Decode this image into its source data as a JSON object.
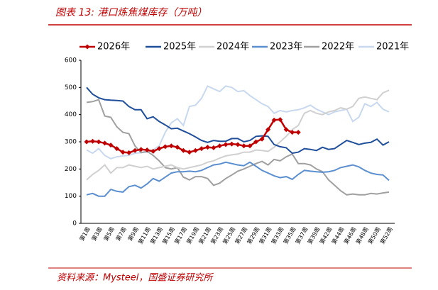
{
  "chart_data": {
    "type": "line",
    "title": "图表 13:  港口炼焦煤库存（万吨）",
    "source": "资料来源：Mysteel，国盛证券研究所",
    "categories": [
      "第1周",
      null,
      "第3周",
      null,
      "第5周",
      null,
      "第7周",
      null,
      "第9周",
      null,
      "第11周",
      null,
      "第13周",
      null,
      "第15周",
      null,
      "第17周",
      null,
      "第19周",
      null,
      "第21周",
      null,
      "第23周",
      null,
      "第25周",
      null,
      "第27周",
      null,
      "第29周",
      null,
      "第31周",
      null,
      "第33周",
      null,
      "第35周",
      null,
      "第37周",
      null,
      "第39周",
      null,
      "第42周",
      null,
      "第44周",
      null,
      "第46周",
      null,
      "第48周",
      null,
      "第50周",
      null,
      "第52周"
    ],
    "ylim": [
      0,
      600
    ],
    "yticks": [
      0,
      100,
      200,
      300,
      400,
      500,
      600
    ],
    "series": [
      {
        "name": "2026年",
        "color": "#c00000",
        "marker": "diamond",
        "values": [
          300,
          302,
          300,
          295,
          288,
          275,
          262,
          260,
          268,
          272,
          270,
          265,
          275,
          282,
          285,
          280,
          268,
          262,
          268,
          275,
          280,
          278,
          285,
          290,
          292,
          290,
          285,
          285,
          300,
          310,
          345,
          380,
          382,
          345,
          335,
          335,
          null,
          null,
          null,
          null,
          null,
          null,
          null,
          null,
          null,
          null,
          null,
          null,
          null,
          null,
          null
        ]
      },
      {
        "name": "2025年",
        "color": "#1f4e9a",
        "values": [
          500,
          475,
          462,
          455,
          453,
          452,
          450,
          430,
          418,
          418,
          385,
          392,
          375,
          362,
          348,
          350,
          340,
          330,
          318,
          305,
          298,
          305,
          302,
          302,
          312,
          312,
          300,
          305,
          320,
          322,
          320,
          290,
          282,
          278,
          258,
          262,
          275,
          272,
          268,
          280,
          272,
          275,
          290,
          305,
          298,
          290,
          295,
          298,
          310,
          288,
          300
        ]
      },
      {
        "name": "2024年",
        "color": "#d0d0d0",
        "values": [
          160,
          180,
          195,
          215,
          185,
          205,
          205,
          215,
          210,
          205,
          210,
          200,
          205,
          210,
          215,
          205,
          200,
          205,
          210,
          215,
          225,
          230,
          240,
          248,
          252,
          255,
          262,
          262,
          270,
          268,
          265,
          280,
          300,
          320,
          345,
          360,
          405,
          415,
          405,
          400,
          410,
          415,
          425,
          420,
          430,
          460,
          465,
          460,
          455,
          480,
          490
        ]
      },
      {
        "name": "2023年",
        "color": "#5b8fd0",
        "values": [
          105,
          110,
          100,
          100,
          125,
          118,
          115,
          135,
          140,
          130,
          145,
          165,
          155,
          170,
          185,
          190,
          190,
          192,
          190,
          195,
          205,
          215,
          218,
          225,
          220,
          215,
          212,
          225,
          210,
          195,
          185,
          175,
          168,
          172,
          162,
          180,
          195,
          192,
          190,
          188,
          190,
          195,
          205,
          210,
          215,
          208,
          195,
          185,
          180,
          178,
          158
        ]
      },
      {
        "name": "2022年",
        "color": "#a0a0a0",
        "values": [
          445,
          448,
          455,
          395,
          390,
          355,
          335,
          330,
          285,
          260,
          265,
          250,
          230,
          205,
          200,
          205,
          170,
          160,
          172,
          172,
          165,
          140,
          148,
          165,
          178,
          192,
          200,
          210,
          220,
          228,
          215,
          235,
          230,
          245,
          255,
          220,
          220,
          215,
          200,
          190,
          160,
          140,
          120,
          105,
          108,
          105,
          105,
          110,
          108,
          112,
          115
        ]
      },
      {
        "name": "2021年",
        "color": "#c8d8ee",
        "values": [
          270,
          258,
          275,
          250,
          238,
          245,
          248,
          250,
          258,
          260,
          262,
          270,
          285,
          335,
          370,
          385,
          360,
          430,
          435,
          460,
          505,
          495,
          485,
          505,
          500,
          485,
          488,
          470,
          455,
          440,
          430,
          405,
          415,
          410,
          415,
          418,
          425,
          435,
          420,
          410,
          400,
          410,
          415,
          420,
          375,
          390,
          440,
          430,
          445,
          420,
          410
        ]
      }
    ]
  }
}
